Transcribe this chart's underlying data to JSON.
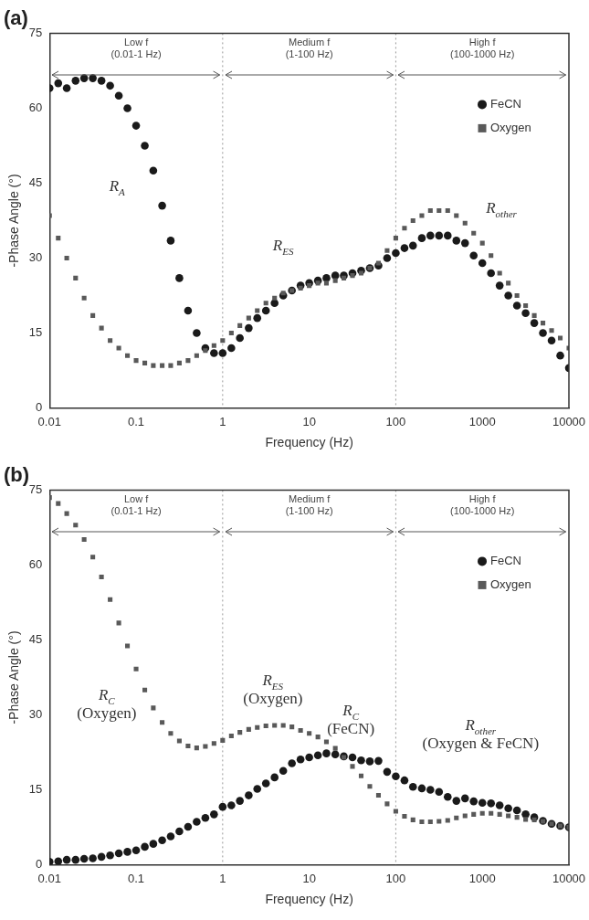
{
  "chart_data": [
    {
      "type": "scatter",
      "title": "(a)",
      "xlabel": "Frequency (Hz)",
      "ylabel": "-Phase Angle (°)",
      "log": "x",
      "grid": false,
      "legend": "top right",
      "xlim": [
        0.01,
        10000
      ],
      "xticks": [
        0.01,
        0.1,
        1,
        10,
        100,
        1000,
        10000
      ],
      "ylim": [
        0,
        75
      ],
      "yticks": [
        0,
        15,
        30,
        45,
        60,
        75
      ],
      "x": [
        0.01,
        0.0126,
        0.0158,
        0.02,
        0.0251,
        0.0316,
        0.0398,
        0.0501,
        0.0631,
        0.0794,
        0.1,
        0.126,
        0.158,
        0.2,
        0.251,
        0.316,
        0.398,
        0.501,
        0.631,
        0.794,
        1,
        1.26,
        1.58,
        2,
        2.51,
        3.16,
        3.98,
        5.01,
        6.31,
        7.94,
        10,
        12.6,
        15.8,
        20,
        25.1,
        31.6,
        39.8,
        50.1,
        63.1,
        79.4,
        100,
        126,
        158,
        200,
        251,
        316,
        398,
        501,
        631,
        794,
        1000,
        1259,
        1585,
        1995,
        2512,
        3162,
        3981,
        5012,
        6310,
        7943,
        10000
      ],
      "series": [
        {
          "name": "FeCN",
          "color": "#1a1a1a",
          "marker": "circle",
          "values": [
            64,
            65,
            64,
            65.5,
            66,
            66,
            65.5,
            64.5,
            62.5,
            60,
            56.5,
            52.5,
            47.5,
            40.5,
            33.5,
            26,
            19.5,
            15,
            12,
            11,
            11,
            12,
            14,
            16,
            18,
            19.5,
            21,
            22.5,
            23.5,
            24.5,
            25,
            25.5,
            26,
            26.5,
            26.5,
            27,
            27.5,
            28,
            28.5,
            30,
            31,
            32,
            32.5,
            34,
            34.5,
            34.5,
            34.5,
            33.5,
            33,
            30.5,
            29,
            27,
            24.5,
            22.5,
            20.5,
            19,
            17,
            15,
            13.5,
            10.5,
            8
          ]
        },
        {
          "name": "Oxygen",
          "color": "#595959",
          "marker": "square",
          "values": [
            38.5,
            34,
            30,
            26,
            22,
            18.5,
            16,
            13.5,
            12,
            10.5,
            9.5,
            9,
            8.5,
            8.5,
            8.5,
            9,
            9.5,
            10.5,
            11.5,
            12.5,
            13.5,
            15,
            16.5,
            18,
            19.5,
            21,
            22,
            23,
            23.5,
            24,
            24.5,
            25,
            25,
            25.5,
            26,
            26.5,
            27,
            28,
            29,
            31.5,
            34,
            36,
            37.5,
            38.5,
            39.5,
            39.5,
            39.5,
            38.5,
            37,
            35,
            33,
            30.5,
            27,
            25,
            22.5,
            20.5,
            18.5,
            17,
            15.5,
            14,
            12
          ]
        }
      ],
      "ref_lines": [
        {
          "axis": "x",
          "value": 1,
          "line_style": "dotted",
          "color": "#999999"
        },
        {
          "axis": "x",
          "value": 100,
          "line_style": "dotted",
          "color": "#999999"
        }
      ],
      "annotations": [
        "Low f\n(0.01-1 Hz)",
        "Medium f\n(1-100 Hz)",
        "High f\n(100-1000 Hz)",
        "R$_{A}$",
        "R$_{ES}$",
        "R$_{other}$"
      ]
    },
    {
      "type": "scatter",
      "title": "(b)",
      "xlabel": "Frequency (Hz)",
      "ylabel": "-Phase Angle (°)",
      "log": "x",
      "grid": false,
      "legend": "top right",
      "xlim": [
        0.01,
        10000
      ],
      "xticks": [
        0.01,
        0.1,
        1,
        10,
        100,
        1000,
        10000
      ],
      "ylim": [
        0,
        75
      ],
      "yticks": [
        0,
        15,
        30,
        45,
        60,
        75
      ],
      "x": [
        0.01,
        0.0126,
        0.0158,
        0.02,
        0.0251,
        0.0316,
        0.0398,
        0.0501,
        0.0631,
        0.0794,
        0.1,
        0.126,
        0.158,
        0.2,
        0.251,
        0.316,
        0.398,
        0.501,
        0.631,
        0.794,
        1,
        1.26,
        1.58,
        2,
        2.51,
        3.16,
        3.98,
        5.01,
        6.31,
        7.94,
        10,
        12.6,
        15.8,
        20,
        25.1,
        31.6,
        39.8,
        50.1,
        63.1,
        79.4,
        100,
        126,
        158,
        200,
        251,
        316,
        398,
        501,
        631,
        794,
        1000,
        1259,
        1585,
        1995,
        2512,
        3162,
        3981,
        5012,
        6310,
        7943,
        10000
      ],
      "series": [
        {
          "name": "FeCN",
          "color": "#1a1a1a",
          "marker": "circle",
          "values": [
            0.6,
            0.7,
            1,
            1,
            1.2,
            1.3,
            1.6,
            1.9,
            2.3,
            2.6,
            2.9,
            3.6,
            4.2,
            4.9,
            5.7,
            6.7,
            7.6,
            8.6,
            9.4,
            10.1,
            11.6,
            11.9,
            12.8,
            13.9,
            15.2,
            16.3,
            17.5,
            18.8,
            20.3,
            21.1,
            21.5,
            21.9,
            22.3,
            22.1,
            21.7,
            21.5,
            20.9,
            20.7,
            20.8,
            18.6,
            17.7,
            16.9,
            15.6,
            15.3,
            15,
            14.6,
            13.6,
            12.8,
            13.3,
            12.7,
            12.4,
            12.3,
            11.9,
            11.3,
            10.9,
            10.1,
            9.5,
            8.8,
            8.2,
            7.8,
            7.5
          ]
        },
        {
          "name": "Oxygen",
          "color": "#595959",
          "marker": "square",
          "values": [
            73.5,
            72.3,
            70.3,
            68,
            65.1,
            61.6,
            57.6,
            53.1,
            48.4,
            43.8,
            39.2,
            35,
            31.4,
            28.5,
            26.3,
            24.8,
            23.8,
            23.4,
            23.7,
            24.3,
            24.9,
            25.8,
            26.5,
            27.1,
            27.5,
            27.8,
            27.9,
            27.9,
            27.6,
            26.9,
            26.3,
            25.6,
            24.6,
            23.3,
            21.5,
            19.7,
            17.8,
            15.7,
            13.9,
            12.2,
            10.7,
            9.7,
            9,
            8.6,
            8.6,
            8.7,
            8.9,
            9.4,
            9.8,
            10.1,
            10.3,
            10.3,
            10.1,
            9.8,
            9.5,
            9.1,
            9,
            8.7,
            8.2,
            7.8,
            7.5
          ]
        }
      ],
      "ref_lines": [
        {
          "axis": "x",
          "value": 1,
          "line_style": "dotted",
          "color": "#999999"
        },
        {
          "axis": "x",
          "value": 100,
          "line_style": "dotted",
          "color": "#999999"
        }
      ],
      "annotations": [
        "Low f\n(0.01-1 Hz)",
        "Medium f\n(1-100 Hz)",
        "High f\n(100-1000 Hz)",
        "R$_{C}$\n(Oxygen)",
        "R$_{ES}$\n(Oxygen)",
        "R$_{C}$\n(FeCN)",
        "R$_{other}$\n(Oxygen & FeCN)"
      ]
    }
  ]
}
